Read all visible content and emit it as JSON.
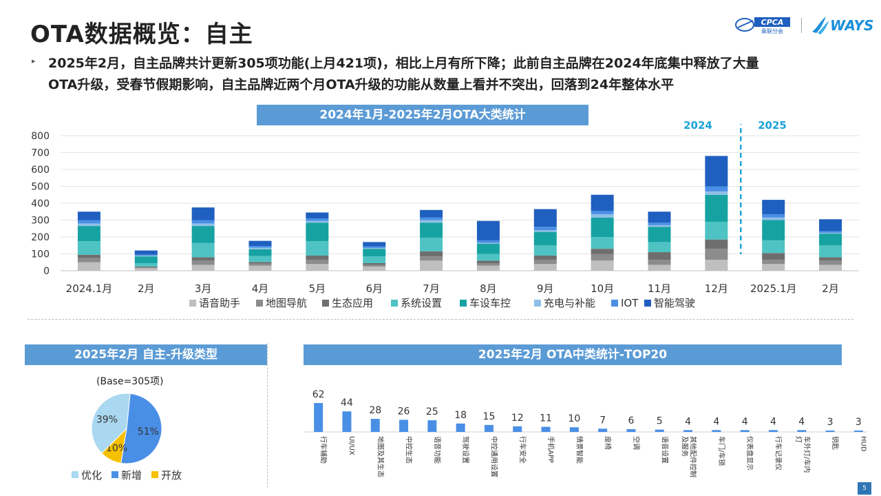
{
  "page": {
    "title": "OTA数据概览：自主",
    "bullet_line1": "2025年2月，自主品牌共计更新305项功能(上月421项)，相比上月有所下降；此前自主品牌在2024年底集中释放了大量",
    "bullet_line2": "OTA升级，受春节假期影响，自主品牌近两个月OTA升级的功能从数量上看并不突出，回落到24年整体水平",
    "logo1_text": "CPCA",
    "logo1_sub": "乘联分会",
    "logo2_text": "WAYS",
    "page_number": "5"
  },
  "chart_data": [
    {
      "type": "bar",
      "stacked": true,
      "title": "2024年1月-2025年2月OTA大类统计",
      "annotations": {
        "left_year": "2024",
        "right_year": "2025"
      },
      "categories": [
        "2024.1月",
        "2月",
        "3月",
        "4月",
        "5月",
        "6月",
        "7月",
        "8月",
        "9月",
        "10月",
        "11月",
        "12月",
        "2025.1月",
        "2月"
      ],
      "ylim": [
        0,
        800
      ],
      "yticks": [
        0,
        100,
        200,
        300,
        400,
        500,
        600,
        700,
        800
      ],
      "grid": true,
      "legend_position": "bottom",
      "series": [
        {
          "name": "语音助手",
          "color": "#bfbfbf",
          "values": [
            50,
            15,
            35,
            30,
            40,
            25,
            60,
            30,
            40,
            60,
            35,
            65,
            40,
            35
          ]
        },
        {
          "name": "地图导航",
          "color": "#8c8c8c",
          "values": [
            25,
            5,
            25,
            12,
            25,
            10,
            25,
            15,
            25,
            40,
            30,
            65,
            25,
            25
          ]
        },
        {
          "name": "生态应用",
          "color": "#6e6e6e",
          "values": [
            20,
            5,
            20,
            10,
            25,
            10,
            30,
            15,
            25,
            30,
            45,
            55,
            40,
            20
          ]
        },
        {
          "name": "系统设置",
          "color": "#4fc3c3",
          "values": [
            80,
            20,
            85,
            35,
            85,
            40,
            80,
            40,
            60,
            70,
            60,
            105,
            75,
            70
          ]
        },
        {
          "name": "车设车控",
          "color": "#17a2a2",
          "values": [
            90,
            40,
            100,
            40,
            110,
            45,
            90,
            60,
            80,
            115,
            90,
            160,
            120,
            70
          ]
        },
        {
          "name": "充电与补能",
          "color": "#8fbfe6",
          "values": [
            15,
            5,
            15,
            10,
            10,
            5,
            15,
            5,
            10,
            20,
            10,
            20,
            15,
            5
          ]
        },
        {
          "name": "IOT",
          "color": "#4a8fe6",
          "values": [
            20,
            5,
            20,
            10,
            15,
            10,
            15,
            15,
            20,
            20,
            15,
            30,
            20,
            10
          ]
        },
        {
          "name": "智能驾驶",
          "color": "#1f5fbf",
          "values": [
            50,
            25,
            75,
            30,
            35,
            25,
            45,
            115,
            105,
            95,
            65,
            180,
            85,
            70
          ]
        }
      ]
    },
    {
      "type": "pie",
      "title": "2025年2月 自主-升级类型",
      "base_label": "(Base=305项)",
      "legend_position": "bottom",
      "slices": [
        {
          "name": "优化",
          "value": 39,
          "label": "39%",
          "color": "#a9d8f0"
        },
        {
          "name": "新增",
          "value": 51,
          "label": "51%",
          "color": "#4a8fe6"
        },
        {
          "name": "开放",
          "value": 10,
          "label": "10%",
          "color": "#f5c000"
        }
      ]
    },
    {
      "type": "bar",
      "title": "2025年2月 OTA中类统计-TOP20",
      "color": "#4a8fe6",
      "categories": [
        "行车辅助",
        "UI/UX",
        "地图及其生态",
        "中控生态",
        "语音功能",
        "驾驶设置",
        "中控通用设置",
        "行车安全",
        "手机APP",
        "情景智能",
        "座椅",
        "空调",
        "语音设置",
        "其他配件控制及服务",
        "车门/车锁",
        "仪表盘显示",
        "行车记录仪",
        "车外灯/车内灯",
        "钥匙",
        "HUD"
      ],
      "values": [
        62,
        44,
        28,
        26,
        25,
        18,
        15,
        12,
        11,
        10,
        7,
        6,
        5,
        4,
        4,
        4,
        4,
        4,
        3,
        3
      ]
    }
  ]
}
